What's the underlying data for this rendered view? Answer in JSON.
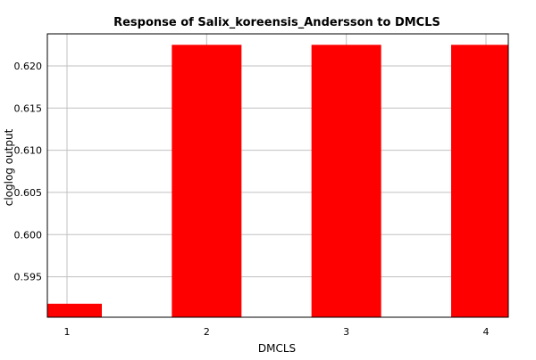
{
  "chart_data": {
    "type": "bar",
    "title": "Response of Salix_koreensis_Andersson to DMCLS",
    "xlabel": "DMCLS",
    "ylabel": "cloglog output",
    "categories": [
      "1",
      "2",
      "3",
      "4"
    ],
    "values": [
      0.5918,
      0.6225,
      0.6225,
      0.6225
    ],
    "ylim": [
      0.5902,
      0.6238
    ],
    "yticks": [
      "0.595",
      "0.600",
      "0.605",
      "0.610",
      "0.615",
      "0.620"
    ],
    "grid": true,
    "legend": "none",
    "bar_color": "#ff0000",
    "grid_color": "#c0c0c0"
  }
}
